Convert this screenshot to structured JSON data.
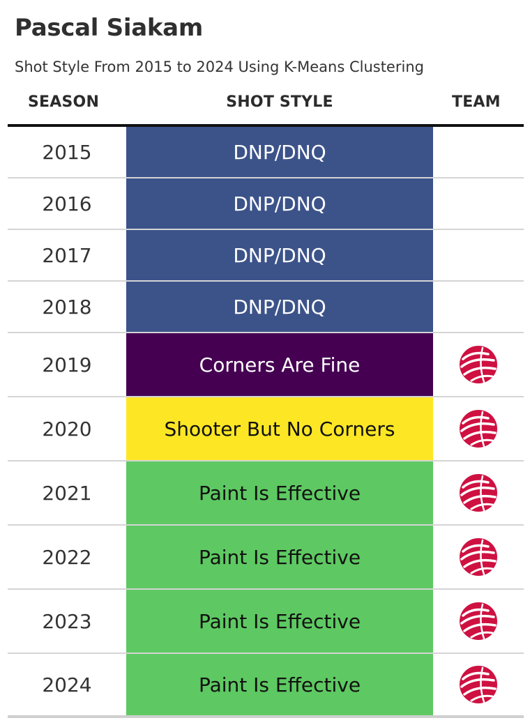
{
  "title": "Pascal Siakam",
  "subtitle": "Shot Style From 2015 to 2024 Using K-Means Clustering",
  "headers": {
    "season": "SEASON",
    "shot_style": "SHOT STYLE",
    "team": "TEAM"
  },
  "colors": {
    "DNP/DNQ": "#3c538a",
    "Corners Are Fine": "#450052",
    "Shooter But No Corners": "#fde725",
    "Paint Is Effective": "#5ec962",
    "team_logo": "#ce1141"
  },
  "chart_data": {
    "type": "table",
    "title": "Pascal Siakam",
    "subtitle": "Shot Style From 2015 to 2024 Using K-Means Clustering",
    "columns": [
      "SEASON",
      "SHOT STYLE",
      "TEAM"
    ],
    "rows": [
      {
        "season": "2015",
        "shot_style": "DNP/DNQ",
        "team_icon": ""
      },
      {
        "season": "2016",
        "shot_style": "DNP/DNQ",
        "team_icon": ""
      },
      {
        "season": "2017",
        "shot_style": "DNP/DNQ",
        "team_icon": ""
      },
      {
        "season": "2018",
        "shot_style": "DNP/DNQ",
        "team_icon": ""
      },
      {
        "season": "2019",
        "shot_style": "Corners Are Fine",
        "team_icon": "raptors-logo-icon"
      },
      {
        "season": "2020",
        "shot_style": "Shooter But No Corners",
        "team_icon": "raptors-logo-icon"
      },
      {
        "season": "2021",
        "shot_style": "Paint Is Effective",
        "team_icon": "raptors-logo-icon"
      },
      {
        "season": "2022",
        "shot_style": "Paint Is Effective",
        "team_icon": "raptors-logo-icon"
      },
      {
        "season": "2023",
        "shot_style": "Paint Is Effective",
        "team_icon": "raptors-logo-icon"
      },
      {
        "season": "2024",
        "shot_style": "Paint Is Effective",
        "team_icon": "raptors-logo-icon"
      }
    ]
  }
}
